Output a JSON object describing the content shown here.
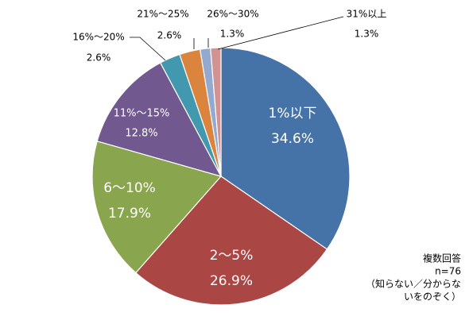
{
  "chart_data": {
    "type": "pie",
    "categories": [
      "1%以下",
      "2～5%",
      "6～10%",
      "11%～15%",
      "16%～20%",
      "21%～25%",
      "26%～30%",
      "31%以上"
    ],
    "values": [
      34.6,
      26.9,
      17.9,
      12.8,
      2.6,
      2.6,
      1.3,
      1.3
    ],
    "value_labels": [
      "34.6%",
      "26.9%",
      "17.9%",
      "12.8%",
      "2.6%",
      "2.6%",
      "1.3%",
      "1.3%"
    ],
    "colors": [
      "#4572a7",
      "#aa4643",
      "#89a54e",
      "#71588f",
      "#4198af",
      "#db843d",
      "#93a9cf",
      "#d19392"
    ],
    "note": [
      "複数回答",
      "n=76",
      "（知らない／分からな",
      "いをのぞく）"
    ]
  }
}
